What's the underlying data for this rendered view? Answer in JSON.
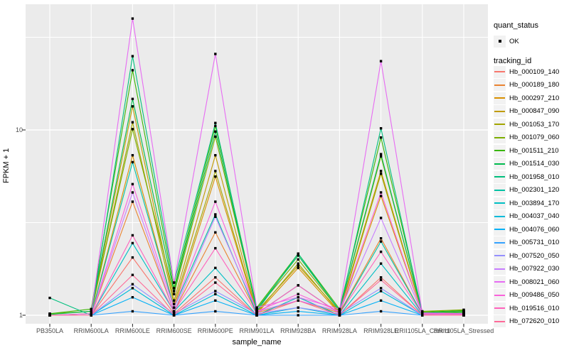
{
  "chart_data": {
    "type": "line",
    "title": "",
    "xlabel": "sample_name",
    "ylabel": "FPKM + 1",
    "y_scale": "log10",
    "ylim": [
      0.93,
      47.6
    ],
    "y_tick_values": [
      1,
      10
    ],
    "y_tick_labels": [
      "1",
      "10"
    ],
    "y_minor_grid_values": [
      3.1623,
      31.623
    ],
    "grid": "white major/minor gridlines on grey panel",
    "legend_position": "right",
    "point_shape": "filled-square",
    "point_color": "#000000",
    "categories": [
      "PB350LA",
      "RRIM600LA",
      "RRIM600LE",
      "RRIM600SE",
      "RRIM600PE",
      "RRIM901LA",
      "RRIM928BA",
      "RRIM928LA",
      "RRIM928LE",
      "RRII105LA_Control",
      "RRII105LA_Stressed"
    ],
    "series": [
      {
        "name": "Hb_000109_140",
        "color": "#F8766D",
        "values": [
          1.0,
          1.0,
          2.05,
          1.02,
          1.6,
          1.0,
          1.25,
          1.0,
          1.6,
          1.0,
          1.0
        ]
      },
      {
        "name": "Hb_000189_180",
        "color": "#EA8331",
        "values": [
          1.0,
          1.0,
          4.1,
          1.05,
          2.8,
          1.03,
          1.2,
          1.03,
          2.6,
          1.01,
          1.02
        ]
      },
      {
        "name": "Hb_000297_210",
        "color": "#D89000",
        "values": [
          1.0,
          1.0,
          7.3,
          1.1,
          5.6,
          1.02,
          1.8,
          1.02,
          4.4,
          1.02,
          1.02
        ]
      },
      {
        "name": "Hb_000847_090",
        "color": "#C09B00",
        "values": [
          1.0,
          1.02,
          13.4,
          1.2,
          7.3,
          1.05,
          1.85,
          1.05,
          6.0,
          1.03,
          1.05
        ]
      },
      {
        "name": "Hb_001053_170",
        "color": "#A3A500",
        "values": [
          1.0,
          1.02,
          11.0,
          1.15,
          6.0,
          1.03,
          1.9,
          1.03,
          5.8,
          1.02,
          1.04
        ]
      },
      {
        "name": "Hb_001079_060",
        "color": "#7CAE00",
        "values": [
          1.02,
          1.05,
          10.1,
          1.3,
          9.2,
          1.08,
          2.0,
          1.06,
          7.2,
          1.05,
          1.07
        ]
      },
      {
        "name": "Hb_001511_210",
        "color": "#39B600",
        "values": [
          1.02,
          1.08,
          21.0,
          1.4,
          10.5,
          1.1,
          2.15,
          1.08,
          9.1,
          1.04,
          1.06
        ]
      },
      {
        "name": "Hb_001514_030",
        "color": "#00BB4E",
        "values": [
          1.01,
          1.05,
          14.7,
          1.35,
          9.8,
          1.08,
          2.1,
          1.06,
          7.4,
          1.03,
          1.05
        ]
      },
      {
        "name": "Hb_001958_010",
        "color": "#00BF7D",
        "values": [
          1.24,
          1.0,
          25.0,
          1.5,
          10.9,
          1.05,
          2.15,
          1.05,
          10.2,
          1.02,
          1.03
        ]
      },
      {
        "name": "Hb_002301_120",
        "color": "#00C1A3",
        "values": [
          1.0,
          1.0,
          6.7,
          1.1,
          3.5,
          1.02,
          1.45,
          1.02,
          2.5,
          1.01,
          1.02
        ]
      },
      {
        "name": "Hb_003894_170",
        "color": "#00BFC4",
        "values": [
          1.0,
          1.0,
          2.45,
          1.05,
          1.8,
          1.0,
          1.25,
          1.0,
          1.9,
          1.0,
          1.0
        ]
      },
      {
        "name": "Hb_004037_040",
        "color": "#00BBDA",
        "values": [
          1.0,
          1.0,
          1.4,
          1.0,
          1.3,
          1.0,
          1.1,
          1.0,
          1.35,
          1.0,
          1.0
        ]
      },
      {
        "name": "Hb_004076_060",
        "color": "#00B0F6",
        "values": [
          1.0,
          1.0,
          1.25,
          1.0,
          1.2,
          1.0,
          1.05,
          1.0,
          1.2,
          1.0,
          1.0
        ]
      },
      {
        "name": "Hb_005731_010",
        "color": "#35A2FF",
        "values": [
          1.0,
          1.0,
          1.05,
          1.0,
          1.05,
          1.0,
          1.0,
          1.0,
          1.05,
          1.0,
          1.0
        ]
      },
      {
        "name": "Hb_007520_050",
        "color": "#9590FF",
        "values": [
          1.0,
          1.0,
          1.47,
          1.02,
          1.35,
          1.02,
          1.1,
          1.02,
          1.4,
          1.0,
          1.0
        ]
      },
      {
        "name": "Hb_007922_030",
        "color": "#C77CFF",
        "values": [
          1.0,
          1.0,
          4.6,
          1.05,
          3.4,
          1.05,
          1.2,
          1.05,
          3.35,
          1.02,
          1.02
        ]
      },
      {
        "name": "Hb_008021_060",
        "color": "#E76BF3",
        "values": [
          1.0,
          1.02,
          39.9,
          1.5,
          25.7,
          1.1,
          1.25,
          1.08,
          23.5,
          1.03,
          1.02
        ]
      },
      {
        "name": "Hb_009486_050",
        "color": "#FA62DB",
        "values": [
          1.0,
          1.0,
          5.1,
          1.1,
          4.1,
          1.05,
          1.3,
          1.05,
          4.6,
          1.02,
          1.02
        ]
      },
      {
        "name": "Hb_019516_010",
        "color": "#FF62BC",
        "values": [
          1.0,
          1.0,
          2.7,
          1.05,
          2.3,
          1.02,
          1.45,
          1.02,
          2.2,
          1.01,
          1.01
        ]
      },
      {
        "name": "Hb_072620_010",
        "color": "#FF6A98",
        "values": [
          1.0,
          1.0,
          1.65,
          1.0,
          1.5,
          1.0,
          1.2,
          1.0,
          1.55,
          1.0,
          1.0
        ]
      }
    ]
  },
  "legend": {
    "quant_title": "quant_status",
    "quant_item_label": "OK",
    "tracking_title": "tracking_id"
  },
  "theme": {
    "panel_bg": "#EBEBEB",
    "grid_color": "#FFFFFF",
    "legend_key_bg": "#F2F2F2",
    "axis_text_color": "#4D4D4D",
    "text_color": "#000000",
    "tick_color": "#333333"
  }
}
